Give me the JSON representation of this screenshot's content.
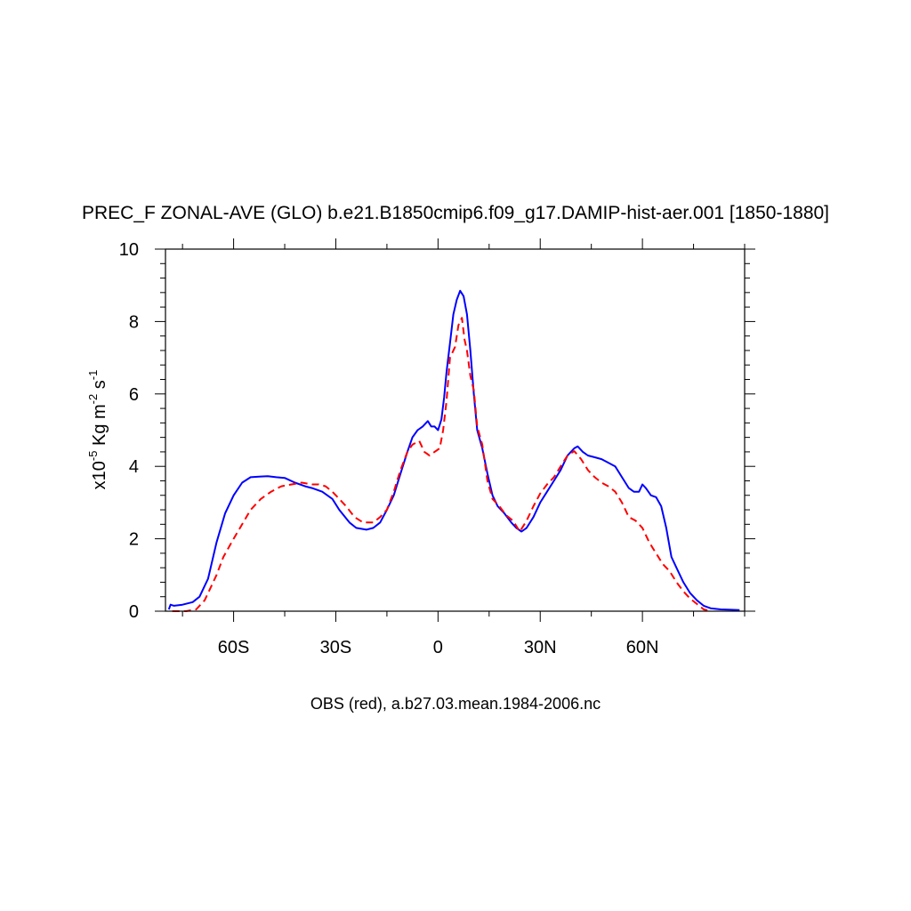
{
  "chart_data": {
    "type": "line",
    "title": "PREC_F ZONAL-AVE (GLO) b.e21.B1850cmip6.f09_g17.DAMIP-hist-aer.001 [1850-1880]",
    "footer": "OBS (red), a.b27.03.mean.1984-2006.nc",
    "ylabel": {
      "prefix": "x10",
      "exp": "-5",
      "unit_a": " Kg m",
      "exp_m": "-2",
      "unit_b": " s",
      "exp_s": "-1"
    },
    "xlim": [
      -80,
      90
    ],
    "ylim": [
      0,
      10
    ],
    "x_ticks": [
      {
        "value": -60,
        "label": "60S"
      },
      {
        "value": -30,
        "label": "30S"
      },
      {
        "value": 0,
        "label": "0"
      },
      {
        "value": 30,
        "label": "30N"
      },
      {
        "value": 60,
        "label": "60N"
      }
    ],
    "y_ticks": [
      {
        "value": 0,
        "label": "0"
      },
      {
        "value": 2,
        "label": "2"
      },
      {
        "value": 4,
        "label": "4"
      },
      {
        "value": 6,
        "label": "6"
      },
      {
        "value": 8,
        "label": "8"
      },
      {
        "value": 10,
        "label": "10"
      }
    ],
    "grid": false,
    "series": [
      {
        "color": "#0000ff",
        "style": "solid",
        "points": [
          [
            -79,
            0.05
          ],
          [
            -78.5,
            0.18
          ],
          [
            -77.5,
            0.15
          ],
          [
            -75,
            0.18
          ],
          [
            -72,
            0.25
          ],
          [
            -70,
            0.4
          ],
          [
            -67.5,
            0.9
          ],
          [
            -65,
            1.9
          ],
          [
            -62.5,
            2.7
          ],
          [
            -60,
            3.2
          ],
          [
            -57.5,
            3.55
          ],
          [
            -55,
            3.7
          ],
          [
            -52,
            3.72
          ],
          [
            -50,
            3.73
          ],
          [
            -47.5,
            3.7
          ],
          [
            -45,
            3.68
          ],
          [
            -42,
            3.55
          ],
          [
            -39,
            3.45
          ],
          [
            -37,
            3.4
          ],
          [
            -34,
            3.3
          ],
          [
            -31,
            3.1
          ],
          [
            -29,
            2.8
          ],
          [
            -26,
            2.45
          ],
          [
            -24,
            2.3
          ],
          [
            -21,
            2.25
          ],
          [
            -19,
            2.3
          ],
          [
            -17,
            2.45
          ],
          [
            -15,
            2.8
          ],
          [
            -13,
            3.2
          ],
          [
            -11,
            3.8
          ],
          [
            -9,
            4.4
          ],
          [
            -7.5,
            4.8
          ],
          [
            -6,
            5.0
          ],
          [
            -4.5,
            5.1
          ],
          [
            -3,
            5.25
          ],
          [
            -2,
            5.1
          ],
          [
            -1,
            5.1
          ],
          [
            0,
            5.0
          ],
          [
            1,
            5.3
          ],
          [
            1.8,
            5.9
          ],
          [
            2.5,
            6.6
          ],
          [
            3.5,
            7.4
          ],
          [
            4.5,
            8.2
          ],
          [
            5.5,
            8.6
          ],
          [
            6.5,
            8.85
          ],
          [
            7.5,
            8.7
          ],
          [
            8.5,
            8.2
          ],
          [
            9.5,
            7.2
          ],
          [
            10.5,
            6.0
          ],
          [
            11.5,
            5.0
          ],
          [
            13,
            4.5
          ],
          [
            14.5,
            3.8
          ],
          [
            16,
            3.2
          ],
          [
            17.5,
            2.9
          ],
          [
            19.5,
            2.7
          ],
          [
            21.5,
            2.45
          ],
          [
            23,
            2.3
          ],
          [
            24.5,
            2.2
          ],
          [
            26,
            2.3
          ],
          [
            28,
            2.6
          ],
          [
            30,
            3.0
          ],
          [
            32,
            3.3
          ],
          [
            34,
            3.6
          ],
          [
            36,
            3.9
          ],
          [
            38,
            4.3
          ],
          [
            40,
            4.5
          ],
          [
            41,
            4.55
          ],
          [
            42.5,
            4.4
          ],
          [
            44,
            4.3
          ],
          [
            46,
            4.25
          ],
          [
            48,
            4.2
          ],
          [
            50,
            4.1
          ],
          [
            52,
            4.0
          ],
          [
            54,
            3.7
          ],
          [
            56,
            3.4
          ],
          [
            57.5,
            3.3
          ],
          [
            59,
            3.3
          ],
          [
            60,
            3.5
          ],
          [
            61,
            3.4
          ],
          [
            62.5,
            3.2
          ],
          [
            64,
            3.15
          ],
          [
            65.5,
            2.9
          ],
          [
            67,
            2.3
          ],
          [
            68.5,
            1.5
          ],
          [
            70,
            1.2
          ],
          [
            72,
            0.8
          ],
          [
            74,
            0.5
          ],
          [
            76,
            0.3
          ],
          [
            78,
            0.15
          ],
          [
            80,
            0.08
          ],
          [
            83,
            0.05
          ],
          [
            86,
            0.04
          ],
          [
            88.5,
            0.03
          ]
        ]
      },
      {
        "color": "#ff0000",
        "style": "dashed",
        "points": [
          [
            -78,
            0.0
          ],
          [
            -74,
            0.0
          ],
          [
            -71,
            0.05
          ],
          [
            -70,
            0.15
          ],
          [
            -68.5,
            0.3
          ],
          [
            -67,
            0.6
          ],
          [
            -65,
            1.0
          ],
          [
            -63,
            1.5
          ],
          [
            -60,
            2.0
          ],
          [
            -57.5,
            2.4
          ],
          [
            -55,
            2.8
          ],
          [
            -52,
            3.1
          ],
          [
            -49,
            3.3
          ],
          [
            -46,
            3.45
          ],
          [
            -43,
            3.5
          ],
          [
            -40,
            3.55
          ],
          [
            -37,
            3.5
          ],
          [
            -35,
            3.5
          ],
          [
            -33,
            3.45
          ],
          [
            -31,
            3.3
          ],
          [
            -29,
            3.1
          ],
          [
            -27,
            2.9
          ],
          [
            -24.5,
            2.6
          ],
          [
            -22,
            2.45
          ],
          [
            -19,
            2.45
          ],
          [
            -17,
            2.6
          ],
          [
            -15,
            2.8
          ],
          [
            -13,
            3.3
          ],
          [
            -11,
            3.9
          ],
          [
            -9,
            4.4
          ],
          [
            -7.5,
            4.6
          ],
          [
            -5.5,
            4.7
          ],
          [
            -4,
            4.4
          ],
          [
            -2.5,
            4.3
          ],
          [
            -1,
            4.4
          ],
          [
            0.5,
            4.5
          ],
          [
            1.5,
            5.0
          ],
          [
            2.5,
            5.8
          ],
          [
            3.5,
            7.0
          ],
          [
            5,
            7.3
          ],
          [
            6,
            7.9
          ],
          [
            7,
            8.1
          ],
          [
            7.8,
            7.5
          ],
          [
            8.5,
            7.2
          ],
          [
            9.5,
            6.5
          ],
          [
            10.5,
            6.1
          ],
          [
            11.5,
            5.1
          ],
          [
            13,
            4.6
          ],
          [
            14.5,
            3.6
          ],
          [
            16,
            3.1
          ],
          [
            18,
            2.9
          ],
          [
            20,
            2.65
          ],
          [
            22,
            2.5
          ],
          [
            24,
            2.2
          ],
          [
            26,
            2.5
          ],
          [
            28,
            2.9
          ],
          [
            30,
            3.25
          ],
          [
            32,
            3.5
          ],
          [
            34,
            3.7
          ],
          [
            36,
            4.0
          ],
          [
            38,
            4.3
          ],
          [
            40,
            4.42
          ],
          [
            42,
            4.2
          ],
          [
            44,
            3.9
          ],
          [
            46,
            3.7
          ],
          [
            48,
            3.55
          ],
          [
            50,
            3.45
          ],
          [
            52,
            3.3
          ],
          [
            54,
            3.0
          ],
          [
            56,
            2.6
          ],
          [
            58,
            2.5
          ],
          [
            60,
            2.3
          ],
          [
            62,
            1.9
          ],
          [
            64,
            1.6
          ],
          [
            66,
            1.3
          ],
          [
            68,
            1.1
          ],
          [
            70,
            0.8
          ],
          [
            72,
            0.55
          ],
          [
            74,
            0.35
          ],
          [
            76,
            0.2
          ],
          [
            78,
            0.05
          ],
          [
            80,
            0.0
          ]
        ]
      }
    ]
  }
}
